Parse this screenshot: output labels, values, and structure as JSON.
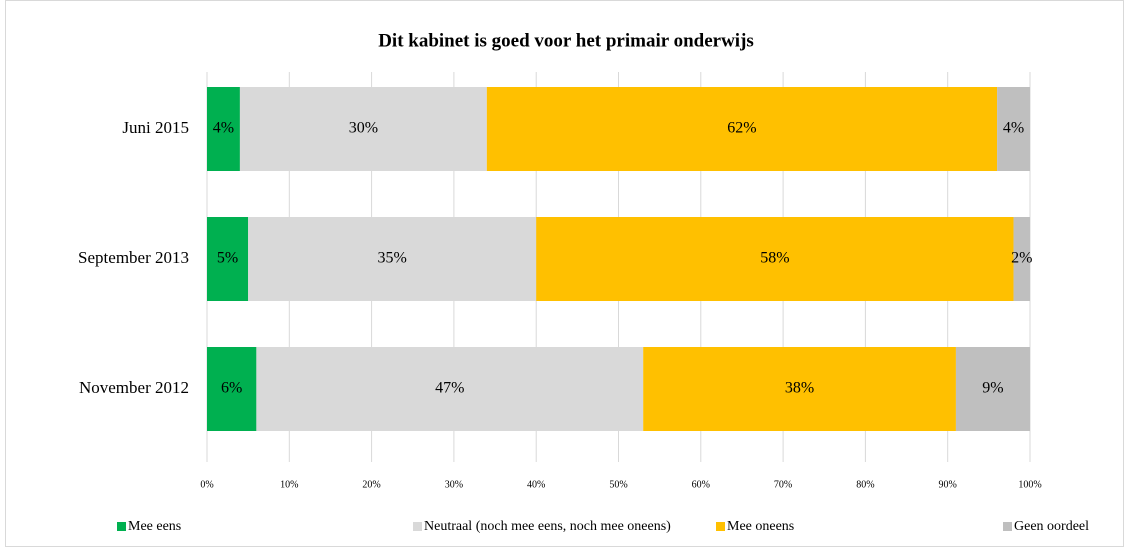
{
  "chart_data": {
    "type": "stacked-bar-horizontal",
    "title": "Dit kabinet is goed voor het primair onderwijs",
    "categories": [
      "Juni 2015",
      "September 2013",
      "November 2012"
    ],
    "series": [
      {
        "name": "Mee eens",
        "color": "#00b050",
        "values": [
          4,
          5,
          6
        ],
        "value_labels": [
          "4%",
          "5%",
          "6%"
        ]
      },
      {
        "name": "Neutraal (noch mee eens, noch mee oneens)",
        "color": "#d9d9d9",
        "values": [
          30,
          35,
          47
        ],
        "value_labels": [
          "30%",
          "35%",
          "47%"
        ]
      },
      {
        "name": "Mee oneens",
        "color": "#ffc000",
        "values": [
          62,
          58,
          38
        ],
        "value_labels": [
          "62%",
          "58%",
          "38%"
        ]
      },
      {
        "name": "Geen oordeel",
        "color": "#bfbfbf",
        "values": [
          4,
          2,
          9
        ],
        "value_labels": [
          "4%",
          "2%",
          "9%"
        ]
      }
    ],
    "xlim": [
      0,
      100
    ],
    "xticks": [
      {
        "value": 0,
        "label": "0%"
      },
      {
        "value": 10,
        "label": "10%"
      },
      {
        "value": 20,
        "label": "20%"
      },
      {
        "value": 30,
        "label": "30%"
      },
      {
        "value": 40,
        "label": "40%"
      },
      {
        "value": 50,
        "label": "50%"
      },
      {
        "value": 60,
        "label": "60%"
      },
      {
        "value": 70,
        "label": "70%"
      },
      {
        "value": 80,
        "label": "80%"
      },
      {
        "value": 90,
        "label": "90%"
      },
      {
        "value": 100,
        "label": "100%"
      }
    ],
    "grid": true,
    "legend": "bottom"
  }
}
